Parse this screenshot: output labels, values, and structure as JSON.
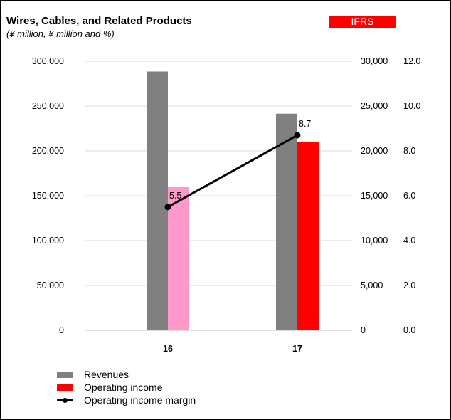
{
  "header": {
    "title": "Wires, Cables, and Related Products",
    "subtitle": "(¥ million, ¥ million and %)",
    "badge": "IFRS",
    "badge_color": "#ff0000"
  },
  "legend": [
    {
      "label": "Revenues",
      "color": "#808080",
      "kind": "bar"
    },
    {
      "label": "Operating income",
      "color": "#ff0000",
      "kind": "bar"
    },
    {
      "label": "Operating income margin",
      "color": "#000000",
      "kind": "line"
    }
  ],
  "chart_data": {
    "type": "bar",
    "categories": [
      "16",
      "17"
    ],
    "series": [
      {
        "name": "Revenues",
        "axis": "left",
        "values": [
          288500,
          241500
        ],
        "colors": [
          "#808080",
          "#808080"
        ]
      },
      {
        "name": "Operating income",
        "axis": "right",
        "values": [
          16000,
          21000
        ],
        "colors": [
          "#ff99cc",
          "#ff0000"
        ]
      },
      {
        "name": "Operating income margin",
        "axis": "right2",
        "type": "line",
        "values": [
          5.5,
          8.7
        ],
        "data_labels": [
          "5.5",
          "8.7"
        ],
        "color": "#000000"
      }
    ],
    "left_axis": {
      "range": [
        0,
        300000
      ],
      "ticks": [
        "0",
        "50,000",
        "100,000",
        "150,000",
        "200,000",
        "250,000",
        "300,000"
      ]
    },
    "right_axis": {
      "range": [
        0,
        30000
      ],
      "ticks": [
        "0",
        "5,000",
        "10,000",
        "15,000",
        "20,000",
        "25,000",
        "30,000"
      ]
    },
    "right2_axis": {
      "range": [
        0,
        12
      ],
      "ticks": [
        "0.0",
        "2.0",
        "4.0",
        "6.0",
        "8.0",
        "10.0",
        "12.0"
      ]
    },
    "grid": true,
    "legend_position": "bottom-left"
  }
}
